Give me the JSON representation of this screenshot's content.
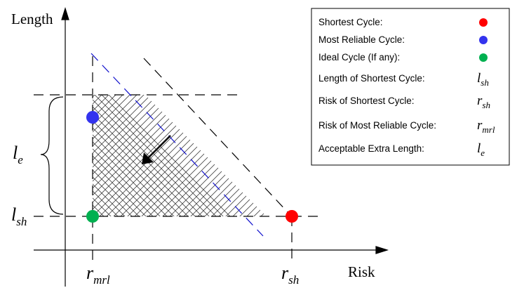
{
  "axes": {
    "y_label": "Length",
    "x_label": "Risk"
  },
  "tick_labels": {
    "r_mrl": {
      "base": "r",
      "sub": "mrl"
    },
    "r_sh": {
      "base": "r",
      "sub": "sh"
    },
    "l_e": {
      "base": "l",
      "sub": "e"
    },
    "l_sh": {
      "base": "l",
      "sub": "sh"
    }
  },
  "legend": [
    {
      "label": "Shortest Cycle:",
      "marker": "dot",
      "color": "#ff0000"
    },
    {
      "label": "Most Reliable Cycle:",
      "marker": "dot",
      "color": "#3333ee"
    },
    {
      "label": "Ideal Cycle (If any):",
      "marker": "dot",
      "color": "#00b050"
    },
    {
      "label": "Length of Shortest Cycle:",
      "marker": "symbol",
      "base": "l",
      "sub": "sh"
    },
    {
      "label": "Risk of Shortest Cycle:",
      "marker": "symbol",
      "base": "r",
      "sub": "sh"
    },
    {
      "label": "Risk of Most Reliable Cycle:",
      "marker": "symbol",
      "base": "r",
      "sub": "mrl"
    },
    {
      "label": "Acceptable Extra Length:",
      "marker": "symbol",
      "base": "l",
      "sub": "e"
    }
  ],
  "colors": {
    "shortest": "#ff0000",
    "most_reliable": "#3333ee",
    "ideal": "#00b050",
    "blue_dash": "#1010cc",
    "line": "#000000"
  }
}
